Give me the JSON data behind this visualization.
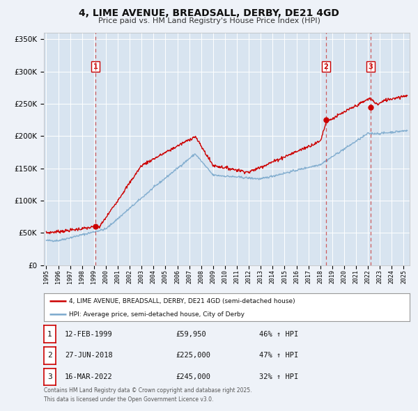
{
  "title": "4, LIME AVENUE, BREADSALL, DERBY, DE21 4GD",
  "subtitle": "Price paid vs. HM Land Registry's House Price Index (HPI)",
  "background_color": "#eef2f8",
  "plot_bg_color": "#d8e4f0",
  "grid_color": "#ffffff",
  "sale_dates": [
    1999.12,
    2018.49,
    2022.21
  ],
  "sale_prices": [
    59950,
    225000,
    245000
  ],
  "sale_labels": [
    "1",
    "2",
    "3"
  ],
  "vline_dates": [
    1999.12,
    2018.49,
    2022.21
  ],
  "legend1_label": "4, LIME AVENUE, BREADSALL, DERBY, DE21 4GD (semi-detached house)",
  "legend2_label": "HPI: Average price, semi-detached house, City of Derby",
  "table_rows": [
    {
      "num": "1",
      "date": "12-FEB-1999",
      "price": "£59,950",
      "hpi": "46% ↑ HPI"
    },
    {
      "num": "2",
      "date": "27-JUN-2018",
      "price": "£225,000",
      "hpi": "47% ↑ HPI"
    },
    {
      "num": "3",
      "date": "16-MAR-2022",
      "price": "£245,000",
      "hpi": "32% ↑ HPI"
    }
  ],
  "footer_text": "Contains HM Land Registry data © Crown copyright and database right 2025.\nThis data is licensed under the Open Government Licence v3.0.",
  "ylim": [
    0,
    360000
  ],
  "xlim_start": 1994.8,
  "xlim_end": 2025.5,
  "red_line_color": "#cc0000",
  "blue_line_color": "#7aa8cc",
  "sale_dot_color": "#cc0000"
}
